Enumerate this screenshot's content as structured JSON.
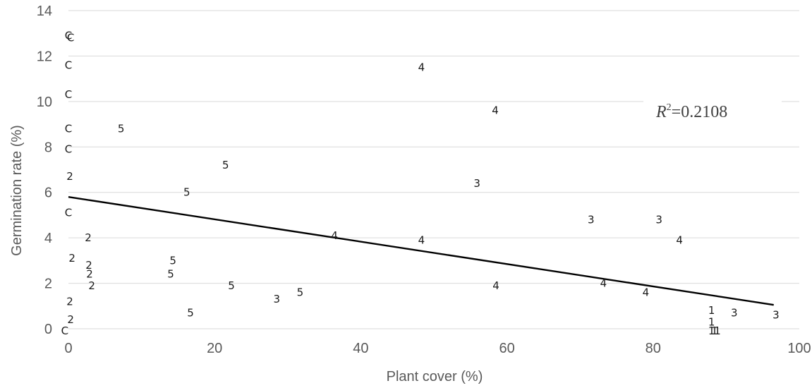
{
  "chart_data": {
    "type": "scatter",
    "title": "",
    "xlabel": "Plant cover (%)",
    "ylabel": "Germination rate (%)",
    "xlim": [
      0,
      100
    ],
    "ylim": [
      0,
      14
    ],
    "x_ticks": [
      "0",
      "20",
      "40",
      "60",
      "80",
      "100"
    ],
    "y_ticks": [
      "0",
      "2",
      "4",
      "6",
      "8",
      "10",
      "12",
      "14"
    ],
    "grid": "horizontal",
    "r2_prefix": "R",
    "r2_exp": "2",
    "r2_value": "=0.2108",
    "trendline": {
      "x": [
        0,
        96.5
      ],
      "y": [
        5.8,
        1.05
      ]
    },
    "points": [
      {
        "label": "C",
        "x": 0,
        "y": 12.9
      },
      {
        "label": "C",
        "x": 0.3,
        "y": 12.8
      },
      {
        "label": "C",
        "x": 0,
        "y": 11.6
      },
      {
        "label": "C",
        "x": 0,
        "y": 10.3
      },
      {
        "label": "C",
        "x": 0,
        "y": 8.8
      },
      {
        "label": "C",
        "x": 0,
        "y": 7.9
      },
      {
        "label": "C",
        "x": 0,
        "y": 5.1
      },
      {
        "label": "C",
        "x": -0.5,
        "y": -0.1
      },
      {
        "label": "2",
        "x": 0.2,
        "y": 6.7
      },
      {
        "label": "2",
        "x": 2.7,
        "y": 4.0
      },
      {
        "label": "2",
        "x": 0.5,
        "y": 3.1
      },
      {
        "label": "2",
        "x": 2.8,
        "y": 2.8
      },
      {
        "label": "2",
        "x": 2.9,
        "y": 2.4
      },
      {
        "label": "2",
        "x": 3.2,
        "y": 1.9
      },
      {
        "label": "2",
        "x": 0.2,
        "y": 1.2
      },
      {
        "label": "2",
        "x": 0.3,
        "y": 0.4
      },
      {
        "label": "5",
        "x": 7.2,
        "y": 8.8
      },
      {
        "label": "5",
        "x": 21.5,
        "y": 7.2
      },
      {
        "label": "5",
        "x": 16.2,
        "y": 6.0
      },
      {
        "label": "5",
        "x": 14.3,
        "y": 3.0
      },
      {
        "label": "5",
        "x": 14.0,
        "y": 2.4
      },
      {
        "label": "5",
        "x": 22.3,
        "y": 1.9
      },
      {
        "label": "5",
        "x": 31.7,
        "y": 1.6
      },
      {
        "label": "5",
        "x": 16.7,
        "y": 0.7
      },
      {
        "label": "4",
        "x": 48.3,
        "y": 11.5
      },
      {
        "label": "4",
        "x": 58.4,
        "y": 9.6
      },
      {
        "label": "4",
        "x": 36.4,
        "y": 4.1
      },
      {
        "label": "4",
        "x": 48.3,
        "y": 3.9
      },
      {
        "label": "4",
        "x": 58.5,
        "y": 1.9
      },
      {
        "label": "4",
        "x": 73.2,
        "y": 2.0
      },
      {
        "label": "4",
        "x": 79.0,
        "y": 1.6
      },
      {
        "label": "4",
        "x": 83.6,
        "y": 3.9
      },
      {
        "label": "3",
        "x": 55.9,
        "y": 6.4
      },
      {
        "label": "3",
        "x": 71.5,
        "y": 4.8
      },
      {
        "label": "3",
        "x": 80.8,
        "y": 4.8
      },
      {
        "label": "3",
        "x": 28.5,
        "y": 1.3
      },
      {
        "label": "3",
        "x": 91.1,
        "y": 0.7
      },
      {
        "label": "3",
        "x": 96.8,
        "y": 0.6
      },
      {
        "label": "1",
        "x": 88.0,
        "y": 0.8
      },
      {
        "label": "1",
        "x": 88.0,
        "y": 0.3
      },
      {
        "label": "1",
        "x": 88.0,
        "y": -0.1
      },
      {
        "label": "1",
        "x": 88.4,
        "y": -0.1
      },
      {
        "label": "1",
        "x": 88.8,
        "y": -0.1
      }
    ]
  }
}
